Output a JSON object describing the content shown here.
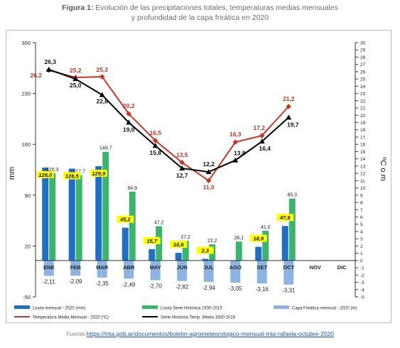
{
  "header": {
    "fig_label": "Figura 1:",
    "title_line1": "Evolución de las precipitaciones totales, temperaturas medias mensuales",
    "title_line2": "y profundidad de la capa freática en 2020"
  },
  "footer": {
    "source_label": "Fuente:",
    "source_url": "https://inta.gob.ar/documentos/boletin-agrometeorologico-mensual-inta-rafaela-octubre-2020"
  },
  "chart_data": {
    "type": "bar",
    "categories": [
      "ENE",
      "FEB",
      "MAR",
      "ABR",
      "MAY",
      "JUN",
      "JUL",
      "AGO",
      "SET",
      "OCT",
      "NOV",
      "DIC"
    ],
    "ylabel": "mm",
    "y2label": "ºC o m",
    "ylim": [
      -50,
      300
    ],
    "yticks": [
      -50,
      20,
      90,
      160,
      230,
      300
    ],
    "y2lim": [
      -5,
      30
    ],
    "y2ticks": [
      -5,
      -4,
      -3,
      -2,
      -1,
      0,
      1,
      2,
      3,
      4,
      5,
      6,
      7,
      8,
      9,
      10,
      11,
      12,
      13,
      14,
      15,
      16,
      17,
      18,
      19,
      20,
      21,
      22,
      23,
      24,
      25,
      26,
      27,
      28,
      29,
      30
    ],
    "series": [
      {
        "name": "Lluvia mensual - 2020 (mm)",
        "kind": "bar",
        "axis": "left",
        "color": "#1f6fc5",
        "values": [
          128.0,
          126.5,
          129.9,
          45.2,
          15.7,
          10.6,
          2.3,
          null,
          18.9,
          47.6,
          null,
          null
        ],
        "labels": [
          "128,0",
          "126,5",
          "129,9",
          "45,2",
          "15,7",
          "10,6",
          "2,3",
          "",
          "18,9",
          "47,6",
          "",
          ""
        ]
      },
      {
        "name": "Lluvia Serie Histórica 1930-2019",
        "kind": "bar",
        "axis": "left",
        "color": "#3cb46e",
        "values": [
          120.3,
          117.7,
          149.7,
          94.9,
          47.2,
          27.2,
          22.2,
          26.1,
          41.0,
          85.3,
          null,
          null
        ],
        "labels": [
          "120,3",
          "117,7",
          "149,7",
          "94,9",
          "47,2",
          "27,2",
          "22,2",
          "26,1",
          "41,0",
          "85,3",
          "",
          ""
        ]
      },
      {
        "name": "Capa Freática mensual - 2020 (m)",
        "kind": "bar",
        "axis": "right",
        "color": "#8db3e2",
        "values": [
          -2.11,
          -2.09,
          -2.35,
          -2.49,
          -2.7,
          -2.82,
          -2.94,
          -3.05,
          -3.16,
          -3.31,
          null,
          null
        ],
        "labels": [
          "-2,11",
          "-2,09",
          "-2,35",
          "-2,49",
          "-2,70",
          "-2,82",
          "-2,94",
          "-3,05",
          "-3,16",
          "-3,31",
          "",
          ""
        ]
      },
      {
        "name": "Temperatura Media Mensual - 2020 (ºC)",
        "kind": "line",
        "axis": "right",
        "color": "#c0392b",
        "marker": "diamond",
        "values": [
          26.2,
          25.2,
          25.3,
          20.2,
          16.5,
          13.5,
          11.0,
          16.3,
          17.2,
          21.2,
          null,
          null
        ],
        "labels": [
          "26,2",
          "25,2",
          "25,3",
          "20,2",
          "16,5",
          "13,5",
          "11,0",
          "16,3",
          "17,2",
          "21,2",
          "",
          ""
        ]
      },
      {
        "name": "Serie Histórica Temp. Media 1930-2019",
        "kind": "line",
        "axis": "right",
        "color": "#000000",
        "marker": "triangle",
        "values": [
          26.3,
          25.0,
          22.8,
          19.0,
          15.8,
          12.7,
          12.2,
          13.8,
          16.4,
          19.7,
          null,
          null
        ],
        "labels": [
          "26,3",
          "25,0",
          "22,8",
          "19,0",
          "15,8",
          "12,7",
          "12,2",
          "13,8",
          "16,4",
          "19,7",
          "",
          ""
        ]
      }
    ],
    "legend_position": "bottom",
    "grid": false
  }
}
